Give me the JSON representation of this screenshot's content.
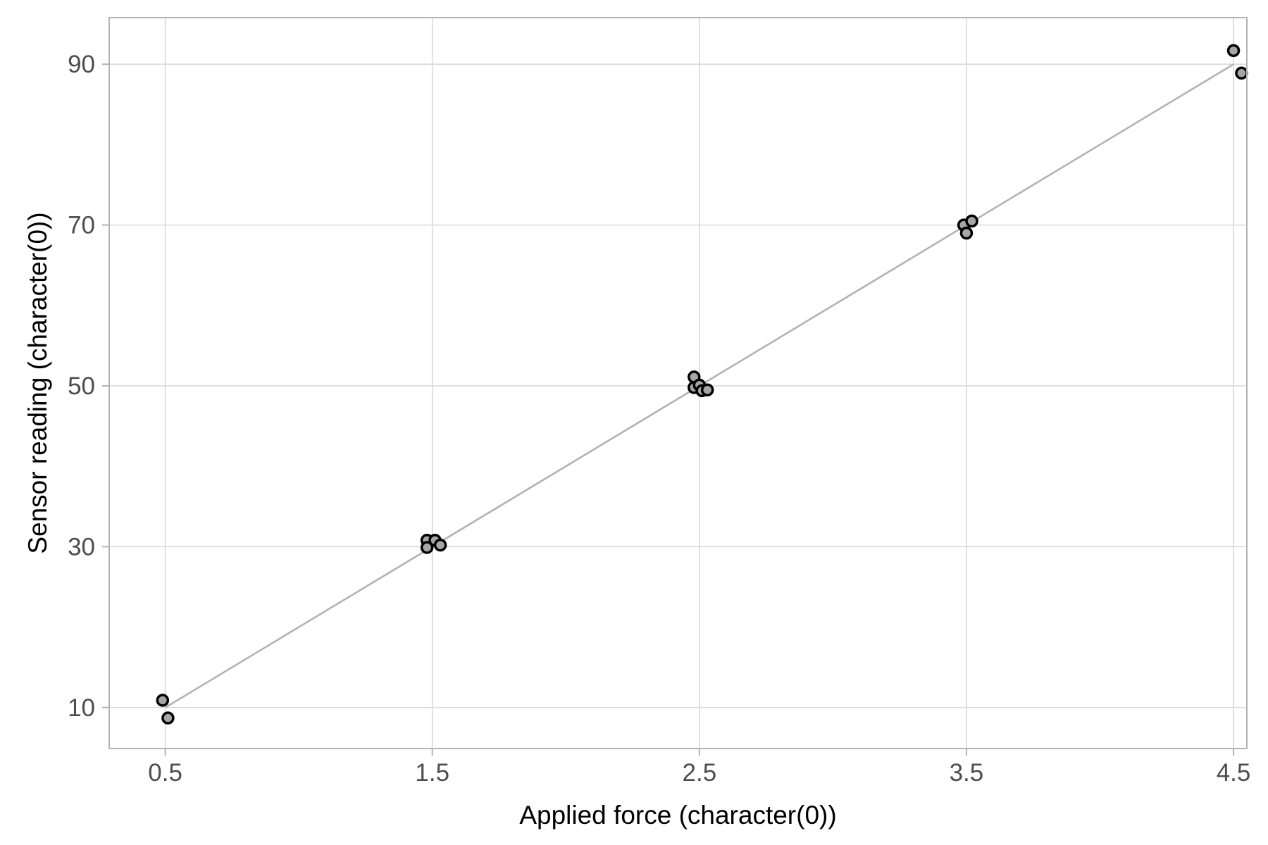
{
  "chart_data": {
    "type": "scatter",
    "xlabel": "Applied force (character(0))",
    "ylabel": "Sensor reading (character(0))",
    "xlim": [
      0.29,
      4.55
    ],
    "ylim": [
      4.9,
      95.8
    ],
    "x_ticks": [
      0.5,
      1.5,
      2.5,
      3.5,
      4.5
    ],
    "x_tick_labels": [
      "0.5",
      "1.5",
      "2.5",
      "3.5",
      "4.5"
    ],
    "y_ticks": [
      10,
      30,
      50,
      70,
      90
    ],
    "y_tick_labels": [
      "10",
      "30",
      "50",
      "70",
      "90"
    ],
    "grid": true,
    "series": [
      {
        "points": [
          {
            "x": 0.49,
            "y": 10.9
          },
          {
            "x": 0.51,
            "y": 8.7
          },
          {
            "x": 1.48,
            "y": 30.8
          },
          {
            "x": 1.48,
            "y": 29.9
          },
          {
            "x": 1.51,
            "y": 30.8
          },
          {
            "x": 1.53,
            "y": 30.2
          },
          {
            "x": 2.48,
            "y": 51.1
          },
          {
            "x": 2.48,
            "y": 49.8
          },
          {
            "x": 2.5,
            "y": 50.1
          },
          {
            "x": 2.51,
            "y": 49.4
          },
          {
            "x": 2.53,
            "y": 49.5
          },
          {
            "x": 3.49,
            "y": 70.0
          },
          {
            "x": 3.5,
            "y": 69.0
          },
          {
            "x": 3.52,
            "y": 70.5
          },
          {
            "x": 4.5,
            "y": 91.7
          },
          {
            "x": 4.53,
            "y": 88.9
          }
        ]
      }
    ],
    "fit_line": {
      "x": [
        0.5,
        4.5
      ],
      "y": [
        10.0,
        90.0
      ]
    },
    "colors": {
      "point_fill": "#a6a6a6",
      "point_stroke": "#000000",
      "fit_line": "#b3b3b3",
      "grid": "#d9d9d9"
    }
  }
}
